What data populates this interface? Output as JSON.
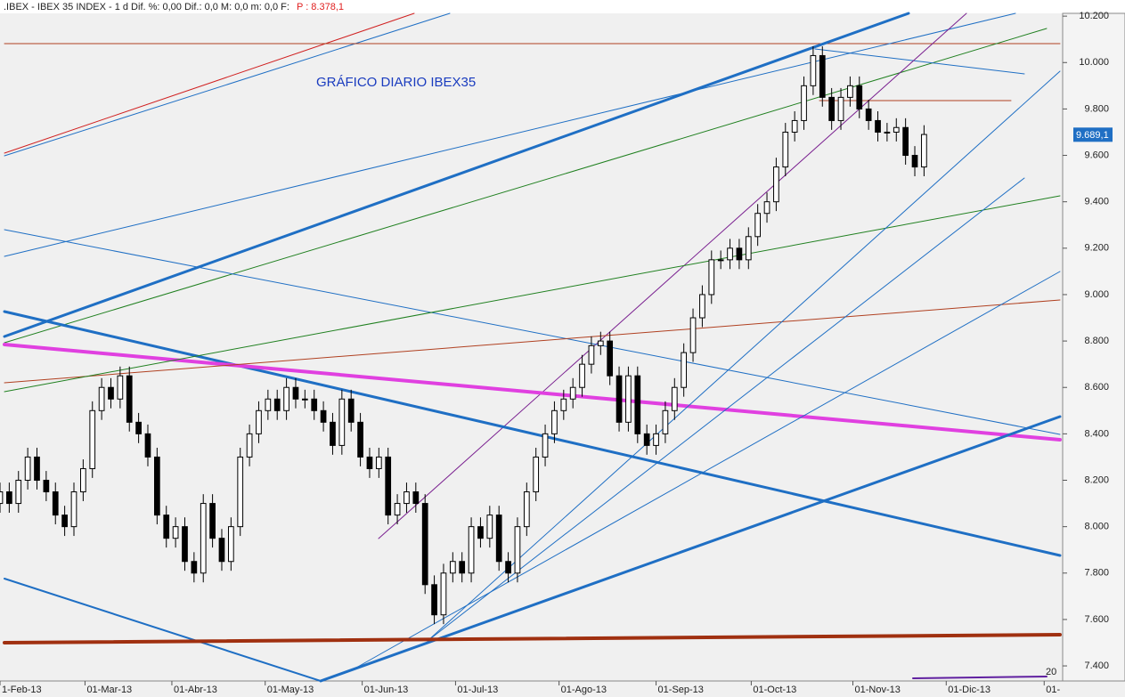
{
  "chart_data": {
    "type": "candlestick",
    "header": ".IBEX - IBEX 35 INDEX - 1 d Dif. %: 0,00 Dif.: 0,0 M: 0,0 m: 0,0 F:",
    "header_price": "P : 8.378,1",
    "title": "GRÁFICO DIARIO IBEX35",
    "corner_label": "20",
    "x": [
      0,
      1,
      2,
      3,
      4,
      5,
      6,
      7,
      8,
      9,
      10,
      11,
      12,
      13,
      14,
      15,
      16,
      17,
      18,
      19,
      20,
      21,
      22,
      23,
      24,
      25,
      26,
      27,
      28,
      29,
      30,
      31,
      32,
      33,
      34,
      35,
      36,
      37,
      38,
      39,
      40,
      41,
      42,
      43,
      44,
      45,
      46,
      47,
      48,
      49,
      50,
      51,
      52,
      53,
      54,
      55,
      56,
      57,
      58,
      59,
      60,
      61,
      62,
      63,
      64,
      65,
      66,
      67,
      68,
      69,
      70,
      71,
      72,
      73,
      74,
      75,
      76,
      77,
      78,
      79,
      80,
      81,
      82,
      83,
      84,
      85,
      86,
      87,
      88,
      89,
      90,
      91,
      92,
      93,
      94,
      95,
      96,
      97,
      98,
      99,
      100
    ],
    "open": [
      8100,
      8150,
      8100,
      8200,
      8300,
      8200,
      8150,
      8050,
      8000,
      8150,
      8250,
      8500,
      8600,
      8550,
      8650,
      8450,
      8400,
      8300,
      8050,
      7950,
      8000,
      7850,
      7800,
      8100,
      7950,
      7850,
      8000,
      8300,
      8400,
      8500,
      8550,
      8500,
      8600,
      8550,
      8550,
      8500,
      8450,
      8350,
      8550,
      8450,
      8300,
      8250,
      8300,
      8050,
      8100,
      8150,
      8100,
      7750,
      7620,
      7800,
      7850,
      7800,
      8000,
      7950,
      8050,
      7850,
      7800,
      8000,
      8150,
      8300,
      8400,
      8500,
      8550,
      8600,
      8700,
      8780,
      8800,
      8650,
      8450,
      8650,
      8400,
      8350,
      8400,
      8500,
      8600,
      8750,
      8900,
      9000,
      9150,
      9150,
      9200,
      9150,
      9250,
      9350,
      9400,
      9550,
      9700,
      9750,
      9900,
      10030,
      9850,
      9750,
      9850,
      9900,
      9800,
      9750,
      9700,
      9700,
      9720,
      9600,
      9550
    ],
    "high": [
      8190,
      8190,
      8240,
      8340,
      8340,
      8240,
      8190,
      8090,
      8190,
      8290,
      8540,
      8640,
      8640,
      8690,
      8690,
      8490,
      8440,
      8340,
      8090,
      8040,
      8040,
      7890,
      8140,
      8140,
      7990,
      8040,
      8340,
      8440,
      8540,
      8590,
      8590,
      8640,
      8640,
      8590,
      8590,
      8540,
      8490,
      8590,
      8590,
      8490,
      8340,
      8340,
      8340,
      8140,
      8190,
      8190,
      8140,
      7790,
      7840,
      7890,
      7890,
      8040,
      8040,
      8090,
      8090,
      7890,
      8040,
      8190,
      8340,
      8440,
      8540,
      8590,
      8640,
      8740,
      8820,
      8840,
      8840,
      8690,
      8690,
      8690,
      8440,
      8440,
      8540,
      8640,
      8790,
      8940,
      9040,
      9190,
      9190,
      9240,
      9240,
      9290,
      9390,
      9440,
      9590,
      9740,
      9790,
      9940,
      10070,
      10070,
      9890,
      9890,
      9940,
      9940,
      9840,
      9790,
      9740,
      9760,
      9760,
      9640,
      9730
    ],
    "low": [
      8060,
      8060,
      8060,
      8160,
      8160,
      8110,
      8010,
      7960,
      7960,
      8110,
      8210,
      8460,
      8510,
      8510,
      8410,
      8360,
      8260,
      8010,
      7910,
      7910,
      7810,
      7760,
      7760,
      7910,
      7810,
      7810,
      7960,
      8260,
      8360,
      8460,
      8460,
      8460,
      8510,
      8510,
      8460,
      8410,
      8310,
      8310,
      8410,
      8260,
      8210,
      8210,
      8010,
      8010,
      8060,
      8060,
      7710,
      7580,
      7580,
      7760,
      7760,
      7760,
      7910,
      7910,
      7810,
      7760,
      7760,
      7960,
      8110,
      8260,
      8360,
      8460,
      8510,
      8560,
      8660,
      8740,
      8610,
      8410,
      8410,
      8360,
      8310,
      8310,
      8360,
      8460,
      8560,
      8710,
      8860,
      8960,
      9110,
      9110,
      9110,
      9110,
      9210,
      9310,
      9360,
      9510,
      9660,
      9710,
      9860,
      9810,
      9710,
      9710,
      9810,
      9760,
      9710,
      9660,
      9660,
      9660,
      9560,
      9510,
      9510
    ],
    "close": [
      8150,
      8100,
      8200,
      8300,
      8200,
      8150,
      8050,
      8000,
      8150,
      8250,
      8500,
      8600,
      8550,
      8650,
      8450,
      8400,
      8300,
      8050,
      7950,
      8000,
      7850,
      7800,
      8100,
      7950,
      7850,
      8000,
      8300,
      8400,
      8500,
      8550,
      8500,
      8600,
      8550,
      8550,
      8500,
      8450,
      8350,
      8550,
      8450,
      8300,
      8250,
      8300,
      8050,
      8100,
      8150,
      8100,
      7750,
      7620,
      7800,
      7850,
      7800,
      8000,
      7950,
      8050,
      7850,
      7800,
      8000,
      8150,
      8300,
      8400,
      8500,
      8550,
      8600,
      8700,
      8780,
      8800,
      8650,
      8450,
      8650,
      8400,
      8350,
      8400,
      8500,
      8600,
      8750,
      8900,
      9000,
      9150,
      9150,
      9200,
      9150,
      9250,
      9350,
      9400,
      9550,
      9700,
      9750,
      9900,
      10030,
      9850,
      9750,
      9850,
      9900,
      9800,
      9750,
      9700,
      9700,
      9720,
      9600,
      9550,
      9690
    ],
    "up_color": "#ffffff",
    "down_color": "#000000",
    "last_price": {
      "value": 9689.1,
      "label": "9.689,1"
    },
    "xlim": [
      0,
      115
    ],
    "xticks": [
      {
        "value": 0,
        "label": "1-Feb-13"
      },
      {
        "value": 9.2,
        "label": "01-Mar-13"
      },
      {
        "value": 18.6,
        "label": "01-Abr-13"
      },
      {
        "value": 28.7,
        "label": "01-May-13"
      },
      {
        "value": 39.2,
        "label": "01-Jun-13"
      },
      {
        "value": 49.3,
        "label": "01-Jul-13"
      },
      {
        "value": 60.5,
        "label": "01-Ago-13"
      },
      {
        "value": 71,
        "label": "01-Sep-13"
      },
      {
        "value": 81.3,
        "label": "01-Oct-13"
      },
      {
        "value": 92.3,
        "label": "01-Nov-13"
      },
      {
        "value": 102.4,
        "label": "01-Dic-13"
      },
      {
        "value": 113,
        "label": "01-"
      }
    ],
    "ylim": [
      7335,
      10212
    ],
    "yticks": [
      {
        "value": 7400,
        "label": "7.400"
      },
      {
        "value": 7600,
        "label": "7.600"
      },
      {
        "value": 7800,
        "label": "7.800"
      },
      {
        "value": 8000,
        "label": "8.000"
      },
      {
        "value": 8200,
        "label": "8.200"
      },
      {
        "value": 8400,
        "label": "8.400"
      },
      {
        "value": 8600,
        "label": "8.600"
      },
      {
        "value": 8800,
        "label": "8.800"
      },
      {
        "value": 9000,
        "label": "9.000"
      },
      {
        "value": 9200,
        "label": "9.200"
      },
      {
        "value": 9400,
        "label": "9.400"
      },
      {
        "value": 9600,
        "label": "9.600"
      },
      {
        "value": 9800,
        "label": "9.800"
      },
      {
        "value": 10000,
        "label": "10.000"
      },
      {
        "value": 10200,
        "label": "10.200"
      }
    ]
  }
}
